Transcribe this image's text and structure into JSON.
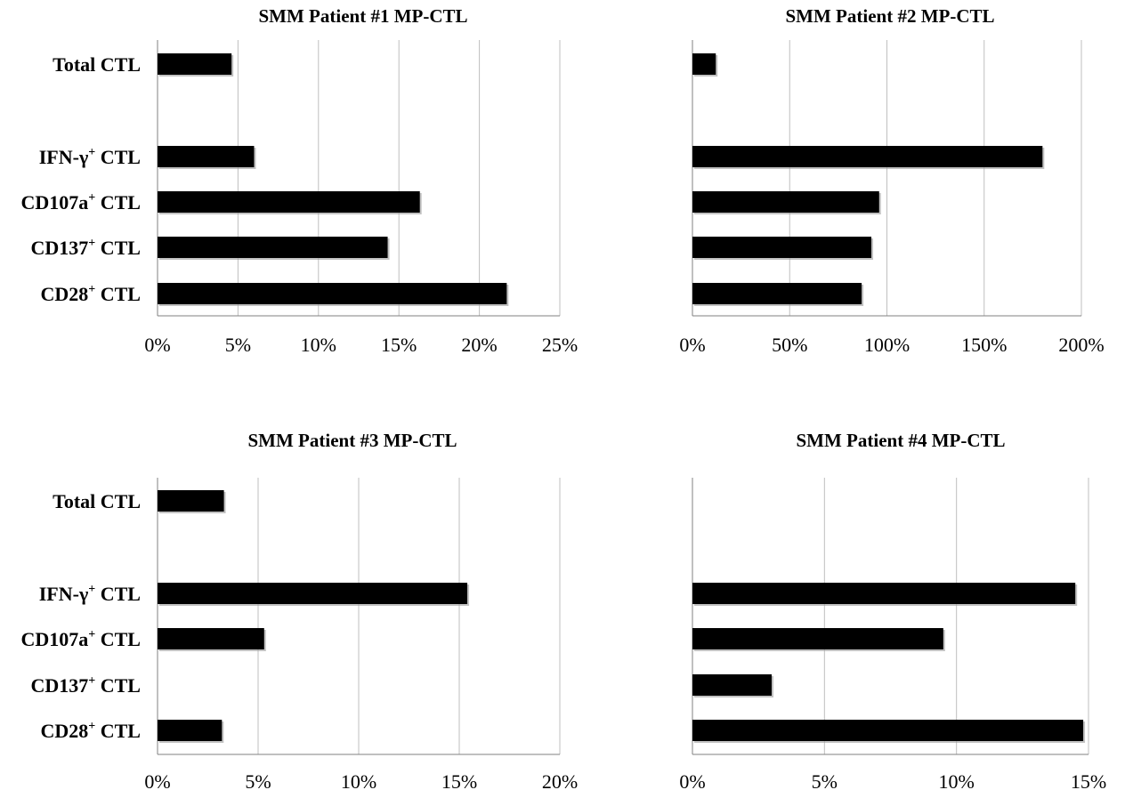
{
  "colors": {
    "bar": "#000000",
    "grid": "#bfbfbf",
    "axis": "#808080",
    "background": "#ffffff"
  },
  "row_labels": [
    {
      "main": "Total CTL",
      "sup": "",
      "suffix": ""
    },
    {
      "main": "IFN-γ",
      "sup": "+",
      "suffix": " CTL"
    },
    {
      "main": "CD107a",
      "sup": "+",
      "suffix": " CTL"
    },
    {
      "main": "CD137",
      "sup": "+",
      "suffix": " CTL"
    },
    {
      "main": "CD28",
      "sup": "+",
      "suffix": " CTL"
    }
  ],
  "chart_data": [
    {
      "type": "bar",
      "orientation": "horizontal",
      "title": "SMM Patient #1  MP-CTL",
      "categories": [
        "Total CTL",
        "IFN-γ+ CTL",
        "CD107a+ CTL",
        "CD137+ CTL",
        "CD28+ CTL"
      ],
      "values": [
        4.6,
        6.0,
        16.3,
        14.3,
        21.7
      ],
      "value_unit": "%",
      "xlim": [
        0,
        25
      ],
      "xticks": [
        "0%",
        "5%",
        "10%",
        "15%",
        "20%",
        "25%"
      ],
      "grid": "vertical"
    },
    {
      "type": "bar",
      "orientation": "horizontal",
      "title": "SMM Patient #2  MP-CTL",
      "categories": [
        "Total CTL",
        "IFN-γ+ CTL",
        "CD107a+ CTL",
        "CD137+ CTL",
        "CD28+ CTL"
      ],
      "values": [
        12,
        180,
        96,
        92,
        87
      ],
      "value_unit": "%",
      "xlim": [
        0,
        200
      ],
      "xticks": [
        "0%",
        "50%",
        "100%",
        "150%",
        "200%"
      ],
      "grid": "vertical"
    },
    {
      "type": "bar",
      "orientation": "horizontal",
      "title": "SMM Patient #3  MP-CTL",
      "categories": [
        "Total CTL",
        "IFN-γ+ CTL",
        "CD107a+ CTL",
        "CD137+ CTL",
        "CD28+ CTL"
      ],
      "values": [
        3.3,
        15.4,
        5.3,
        0,
        3.2
      ],
      "value_unit": "%",
      "xlim": [
        0,
        20
      ],
      "xticks": [
        "0%",
        "5%",
        "10%",
        "15%",
        "20%"
      ],
      "grid": "vertical"
    },
    {
      "type": "bar",
      "orientation": "horizontal",
      "title": "SMM Patient #4  MP-CTL",
      "categories": [
        "Total CTL",
        "IFN-γ+ CTL",
        "CD107a+ CTL",
        "CD137+ CTL",
        "CD28+ CTL"
      ],
      "values": [
        0,
        14.5,
        9.5,
        3.0,
        14.8
      ],
      "value_unit": "%",
      "xlim": [
        0,
        15
      ],
      "xticks": [
        "0%",
        "5%",
        "10%",
        "15%"
      ],
      "grid": "vertical"
    }
  ]
}
